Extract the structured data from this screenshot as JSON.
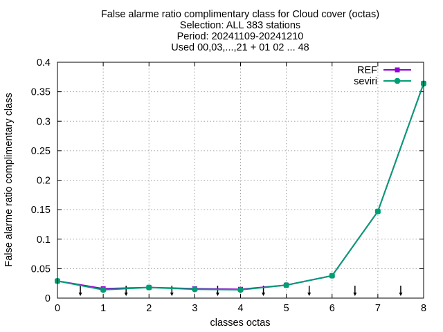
{
  "chart_data": {
    "type": "line",
    "title_lines": [
      "False alarme ratio complimentary class  for Cloud cover (octas)",
      "Selection: ALL     383 stations",
      "Period: 20241109-20241210",
      "Used 00,03,...,21 + 01 02 ... 48"
    ],
    "xlabel": "classes octas",
    "ylabel": "False alarme ratio complimentary class",
    "xlim": [
      0,
      8
    ],
    "ylim": [
      0,
      0.4
    ],
    "x_ticks": [
      "0",
      "1",
      "2",
      "3",
      "4",
      "5",
      "6",
      "7",
      "8"
    ],
    "y_ticks": [
      "0",
      "0.05",
      "0.1",
      "0.15",
      "0.2",
      "0.25",
      "0.3",
      "0.35",
      "0.4"
    ],
    "grid": true,
    "legend_position": "top-right",
    "x": [
      0,
      1,
      2,
      3,
      4,
      5,
      6,
      7,
      8
    ],
    "series": [
      {
        "name": "REF",
        "color": "#9400d3",
        "values": [
          0.029,
          0.016,
          0.018,
          0.016,
          0.015,
          0.022,
          0.038,
          0.147,
          0.364
        ]
      },
      {
        "name": "seviri",
        "color": "#009e73",
        "values": [
          0.029,
          0.014,
          0.018,
          0.015,
          0.014,
          0.022,
          0.038,
          0.147,
          0.364
        ]
      }
    ],
    "arrow_markers_x": [
      0.5,
      1.5,
      2.5,
      3.5,
      4.5,
      5.5,
      6.5,
      7.5
    ]
  }
}
